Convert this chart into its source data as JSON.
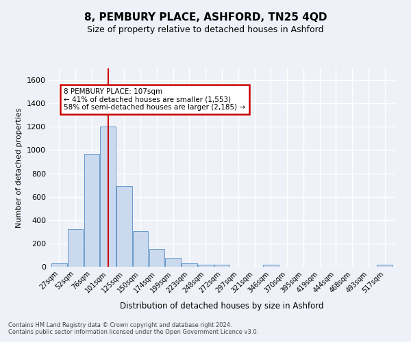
{
  "title": "8, PEMBURY PLACE, ASHFORD, TN25 4QD",
  "subtitle": "Size of property relative to detached houses in Ashford",
  "xlabel": "Distribution of detached houses by size in Ashford",
  "ylabel": "Number of detached properties",
  "bar_color": "#cad9ed",
  "bar_edge_color": "#6699cc",
  "categories": [
    "27sqm",
    "52sqm",
    "76sqm",
    "101sqm",
    "125sqm",
    "150sqm",
    "174sqm",
    "199sqm",
    "223sqm",
    "248sqm",
    "272sqm",
    "297sqm",
    "321sqm",
    "346sqm",
    "370sqm",
    "395sqm",
    "419sqm",
    "444sqm",
    "468sqm",
    "493sqm",
    "517sqm"
  ],
  "values": [
    28,
    325,
    968,
    1200,
    693,
    305,
    155,
    78,
    28,
    18,
    18,
    0,
    0,
    15,
    0,
    0,
    0,
    0,
    0,
    0,
    15
  ],
  "ylim": [
    0,
    1700
  ],
  "yticks": [
    0,
    200,
    400,
    600,
    800,
    1000,
    1200,
    1400,
    1600
  ],
  "vline_x": 3,
  "vline_color": "#cc0000",
  "annotation_text": "8 PEMBURY PLACE: 107sqm\n← 41% of detached houses are smaller (1,553)\n58% of semi-detached houses are larger (2,185) →",
  "annotation_box_color": "#ffffff",
  "annotation_box_edge": "#cc0000",
  "footer_text": "Contains HM Land Registry data © Crown copyright and database right 2024.\nContains public sector information licensed under the Open Government Licence v3.0.",
  "background_color": "#eef2f8",
  "grid_color": "#ffffff",
  "title_fontsize": 11,
  "subtitle_fontsize": 9
}
